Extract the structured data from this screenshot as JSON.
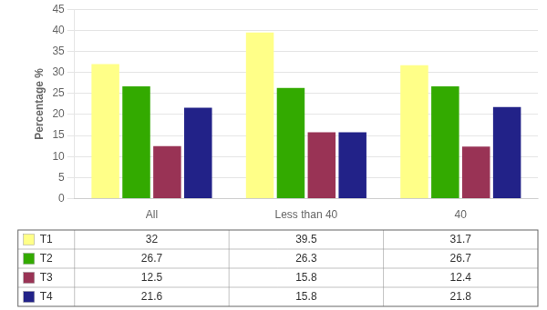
{
  "chart_data": {
    "type": "bar",
    "categories": [
      "All",
      "Less than 40",
      "40"
    ],
    "series": [
      {
        "name": "T1",
        "color": "#FFFF88",
        "values": [
          32.0,
          39.5,
          31.7
        ]
      },
      {
        "name": "T2",
        "color": "#33aa00",
        "values": [
          26.7,
          26.3,
          26.7
        ]
      },
      {
        "name": "T3",
        "color": "#993355",
        "values": [
          12.5,
          15.8,
          12.4
        ]
      },
      {
        "name": "T4",
        "color": "#222288",
        "values": [
          21.6,
          15.8,
          21.8
        ]
      }
    ],
    "ylabel": "Percentage %",
    "ylim": [
      0,
      45
    ],
    "yticks": [
      0,
      5,
      10,
      15,
      20,
      25,
      30,
      35,
      40,
      45
    ],
    "grid": true,
    "data_labels": true
  }
}
